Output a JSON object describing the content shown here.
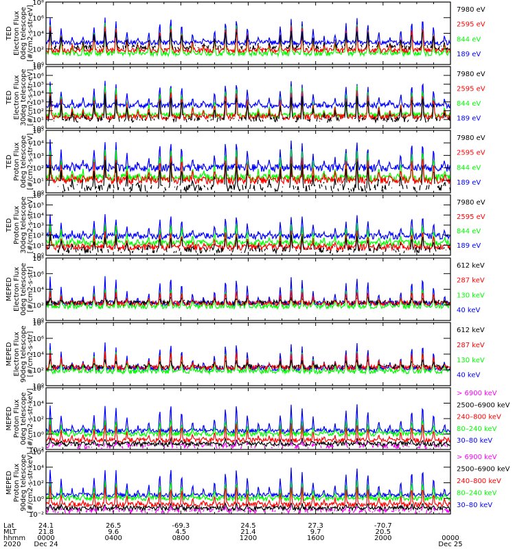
{
  "chart_data": {
    "type": "line",
    "x_range_hours": [
      0,
      24
    ],
    "colors": {
      "black": "#000000",
      "red": "#ff0000",
      "green": "#00ff00",
      "blue": "#0000ff",
      "magenta": "#ff00ff"
    },
    "panels": [
      {
        "ylabel": [
          "TED",
          "Electron Flux",
          "0deg telescope",
          "[#/cm2-s-str-eV]"
        ],
        "ylim_exp": [
          0,
          8
        ],
        "ticks": [
          {
            "exp": 0,
            "label": "10⁰"
          },
          {
            "exp": 2,
            "label": "10²"
          },
          {
            "exp": 4,
            "label": "10⁴"
          },
          {
            "exp": 6,
            "label": "10⁶"
          },
          {
            "exp": 8,
            "label": "10⁸"
          }
        ],
        "legend": [
          {
            "label": "7980 eV",
            "color": "#000000"
          },
          {
            "label": "2595 eV",
            "color": "#ff0000"
          },
          {
            "label": "844 eV",
            "color": "#00ff00"
          },
          {
            "label": "189 eV",
            "color": "#0000ff"
          }
        ],
        "base": [
          2.2,
          1.8,
          1.4,
          2.8
        ],
        "peak": [
          4.5,
          5.0,
          5.3,
          6.0
        ]
      },
      {
        "ylabel": [
          "TED",
          "Electron Flux",
          "30deg telescope",
          "[#/cm2-s-str-eV]"
        ],
        "ylim_exp": [
          0,
          7
        ],
        "ticks": [
          {
            "exp": 0,
            "label": "10⁰"
          },
          {
            "exp": 1,
            "label": "10¹"
          },
          {
            "exp": 2,
            "label": "10²"
          },
          {
            "exp": 3,
            "label": "10³"
          },
          {
            "exp": 4,
            "label": "10⁴"
          },
          {
            "exp": 5,
            "label": "10⁵"
          },
          {
            "exp": 6,
            "label": "10⁶"
          },
          {
            "exp": 7,
            "label": "10⁷"
          }
        ],
        "legend": [
          {
            "label": "7980 eV",
            "color": "#000000"
          },
          {
            "label": "2595 eV",
            "color": "#ff0000"
          },
          {
            "label": "844 eV",
            "color": "#00ff00"
          },
          {
            "label": "189 eV",
            "color": "#0000ff"
          }
        ],
        "base": [
          1.0,
          1.3,
          1.5,
          2.6
        ],
        "peak": [
          3.8,
          4.3,
          4.8,
          5.3
        ]
      },
      {
        "ylabel": [
          "TED",
          "Proton Flux",
          "0deg telescope",
          "[#/cm2-s-str-eV]"
        ],
        "ylim_exp": [
          0,
          5
        ],
        "ticks": [
          {
            "exp": 0,
            "label": "10⁰"
          },
          {
            "exp": 1,
            "label": "10¹"
          },
          {
            "exp": 2,
            "label": "10²"
          },
          {
            "exp": 3,
            "label": "10³"
          },
          {
            "exp": 4,
            "label": "10⁴"
          },
          {
            "exp": 5,
            "label": "10⁵"
          }
        ],
        "legend": [
          {
            "label": "7980 eV",
            "color": "#000000"
          },
          {
            "label": "2595 eV",
            "color": "#ff0000"
          },
          {
            "label": "844 eV",
            "color": "#00ff00"
          },
          {
            "label": "189 eV",
            "color": "#0000ff"
          }
        ],
        "base": [
          0.4,
          1.0,
          1.2,
          2.0
        ],
        "peak": [
          2.5,
          3.0,
          3.6,
          4.2
        ]
      },
      {
        "ylabel": [
          "TED",
          "Proton Flux",
          "30deg telescope",
          "[#/cm2-s-str-eV]"
        ],
        "ylim_exp": [
          0,
          6
        ],
        "ticks": [
          {
            "exp": 0,
            "label": "10⁰"
          },
          {
            "exp": 1,
            "label": "10¹"
          },
          {
            "exp": 2,
            "label": "10²"
          },
          {
            "exp": 3,
            "label": "10³"
          },
          {
            "exp": 4,
            "label": "10⁴"
          },
          {
            "exp": 5,
            "label": "10⁵"
          },
          {
            "exp": 6,
            "label": "10⁶"
          }
        ],
        "legend": [
          {
            "label": "7980 eV",
            "color": "#000000"
          },
          {
            "label": "2595 eV",
            "color": "#ff0000"
          },
          {
            "label": "844 eV",
            "color": "#00ff00"
          },
          {
            "label": "189 eV",
            "color": "#0000ff"
          }
        ],
        "base": [
          0.5,
          0.8,
          1.2,
          1.9
        ],
        "peak": [
          2.0,
          2.4,
          3.2,
          4.0
        ]
      },
      {
        "ylabel": [
          "MEPED",
          "Electron Flux",
          "0deg telescope",
          "[#/cm2-s-str]"
        ],
        "ylim_exp": [
          0,
          8
        ],
        "ticks": [
          {
            "exp": 0,
            "label": "10⁰"
          },
          {
            "exp": 2,
            "label": "10²"
          },
          {
            "exp": 4,
            "label": "10⁴"
          },
          {
            "exp": 6,
            "label": "10⁶"
          },
          {
            "exp": 8,
            "label": "10⁸"
          }
        ],
        "legend": [
          {
            "label": "612 keV",
            "color": "#000000"
          },
          {
            "label": "287 keV",
            "color": "#ff0000"
          },
          {
            "label": "130 keV",
            "color": "#00ff00"
          },
          {
            "label": "40 keV",
            "color": "#0000ff"
          }
        ],
        "base": [
          2.3,
          2.2,
          1.8,
          2.2
        ],
        "peak": [
          3.0,
          3.8,
          4.2,
          5.6
        ]
      },
      {
        "ylabel": [
          "MEPED",
          "Electron Flux",
          "90deg telescope",
          "[#/cm2-s-str]"
        ],
        "ylim_exp": [
          0,
          8
        ],
        "ticks": [
          {
            "exp": 0,
            "label": "10⁰"
          },
          {
            "exp": 2,
            "label": "10²"
          },
          {
            "exp": 4,
            "label": "10⁴"
          },
          {
            "exp": 6,
            "label": "10⁶"
          },
          {
            "exp": 8,
            "label": "10⁸"
          }
        ],
        "legend": [
          {
            "label": "612 keV",
            "color": "#000000"
          },
          {
            "label": "287 keV",
            "color": "#ff0000"
          },
          {
            "label": "130 keV",
            "color": "#00ff00"
          },
          {
            "label": "40 keV",
            "color": "#0000ff"
          }
        ],
        "base": [
          2.4,
          2.3,
          1.8,
          2.2
        ],
        "peak": [
          3.3,
          4.3,
          4.6,
          5.4
        ]
      },
      {
        "ylabel": [
          "MEPED",
          "Proton Flux",
          "0deg telescope",
          "[#/cm2-s-str-keV]"
        ],
        "ylim_exp": [
          -2,
          6
        ],
        "ticks": [
          {
            "exp": -2,
            "label": "10⁻²"
          },
          {
            "exp": 0,
            "label": "10⁰"
          },
          {
            "exp": 2,
            "label": "10²"
          },
          {
            "exp": 4,
            "label": "10⁴"
          },
          {
            "exp": 6,
            "label": "10⁶"
          }
        ],
        "legend": [
          {
            "label": "> 6900 keV",
            "color": "#ff00ff"
          },
          {
            "label": "2500–6900 keV",
            "color": "#000000"
          },
          {
            "label": "240–800 keV",
            "color": "#ff0000"
          },
          {
            "label": "80–240 keV",
            "color": "#00ff00"
          },
          {
            "label": "30–80 keV",
            "color": "#0000ff"
          }
        ],
        "base": [
          -1.6,
          -1.3,
          -0.8,
          0.0,
          0.4
        ],
        "peak": [
          -1.0,
          -0.6,
          1.4,
          2.0,
          3.8
        ]
      },
      {
        "ylabel": [
          "MEPED",
          "Proton Flux",
          "90deg telescope",
          "[#/cm2-s-str-keV]"
        ],
        "ylim_exp": [
          -2,
          6
        ],
        "ticks": [
          {
            "exp": -2,
            "label": "10⁻²"
          },
          {
            "exp": 0,
            "label": "10⁰"
          },
          {
            "exp": 2,
            "label": "10²"
          },
          {
            "exp": 4,
            "label": "10⁴"
          },
          {
            "exp": 6,
            "label": "10⁶"
          }
        ],
        "legend": [
          {
            "label": "> 6900 keV",
            "color": "#ff00ff"
          },
          {
            "label": "2500–6900 keV",
            "color": "#000000"
          },
          {
            "label": "240–800 keV",
            "color": "#ff0000"
          },
          {
            "label": "80–240 keV",
            "color": "#00ff00"
          },
          {
            "label": "30–80 keV",
            "color": "#0000ff"
          }
        ],
        "base": [
          -1.6,
          -1.3,
          -0.8,
          0.0,
          0.4
        ],
        "peak": [
          -1.0,
          -0.6,
          1.6,
          2.2,
          3.9
        ]
      }
    ],
    "x_axis": {
      "row_labels": [
        "Lat",
        "MLT",
        "hhmm",
        "2020"
      ],
      "ticks": [
        {
          "hour": 0,
          "lat": "24.1",
          "mlt": "21.8",
          "hhmm": "0000",
          "date": "Dec 24"
        },
        {
          "hour": 4,
          "lat": "26.5",
          "mlt": "9.6",
          "hhmm": "0400",
          "date": ""
        },
        {
          "hour": 8,
          "lat": "-69.3",
          "mlt": "4.5",
          "hhmm": "0800",
          "date": ""
        },
        {
          "hour": 12,
          "lat": "24.5",
          "mlt": "21.4",
          "hhmm": "1200",
          "date": ""
        },
        {
          "hour": 16,
          "lat": "27.3",
          "mlt": "9.7",
          "hhmm": "1600",
          "date": ""
        },
        {
          "hour": 20,
          "lat": "-70.7",
          "mlt": "20.5",
          "hhmm": "2000",
          "date": ""
        },
        {
          "hour": 24,
          "lat": "",
          "mlt": "",
          "hhmm": "0000",
          "date": "Dec 25"
        }
      ]
    },
    "pass_hours": [
      0.25,
      0.9,
      1.55,
      2.2,
      2.85,
      3.5,
      4.15,
      4.8,
      5.45,
      6.1,
      6.75,
      7.4,
      8.05,
      8.7,
      9.35,
      10.0,
      10.65,
      11.3,
      11.95,
      12.6,
      13.25,
      13.9,
      14.55,
      15.2,
      15.85,
      16.5,
      17.15,
      17.8,
      18.45,
      19.1,
      19.75,
      20.4,
      21.05,
      21.7,
      22.35,
      23.0,
      23.65
    ]
  }
}
